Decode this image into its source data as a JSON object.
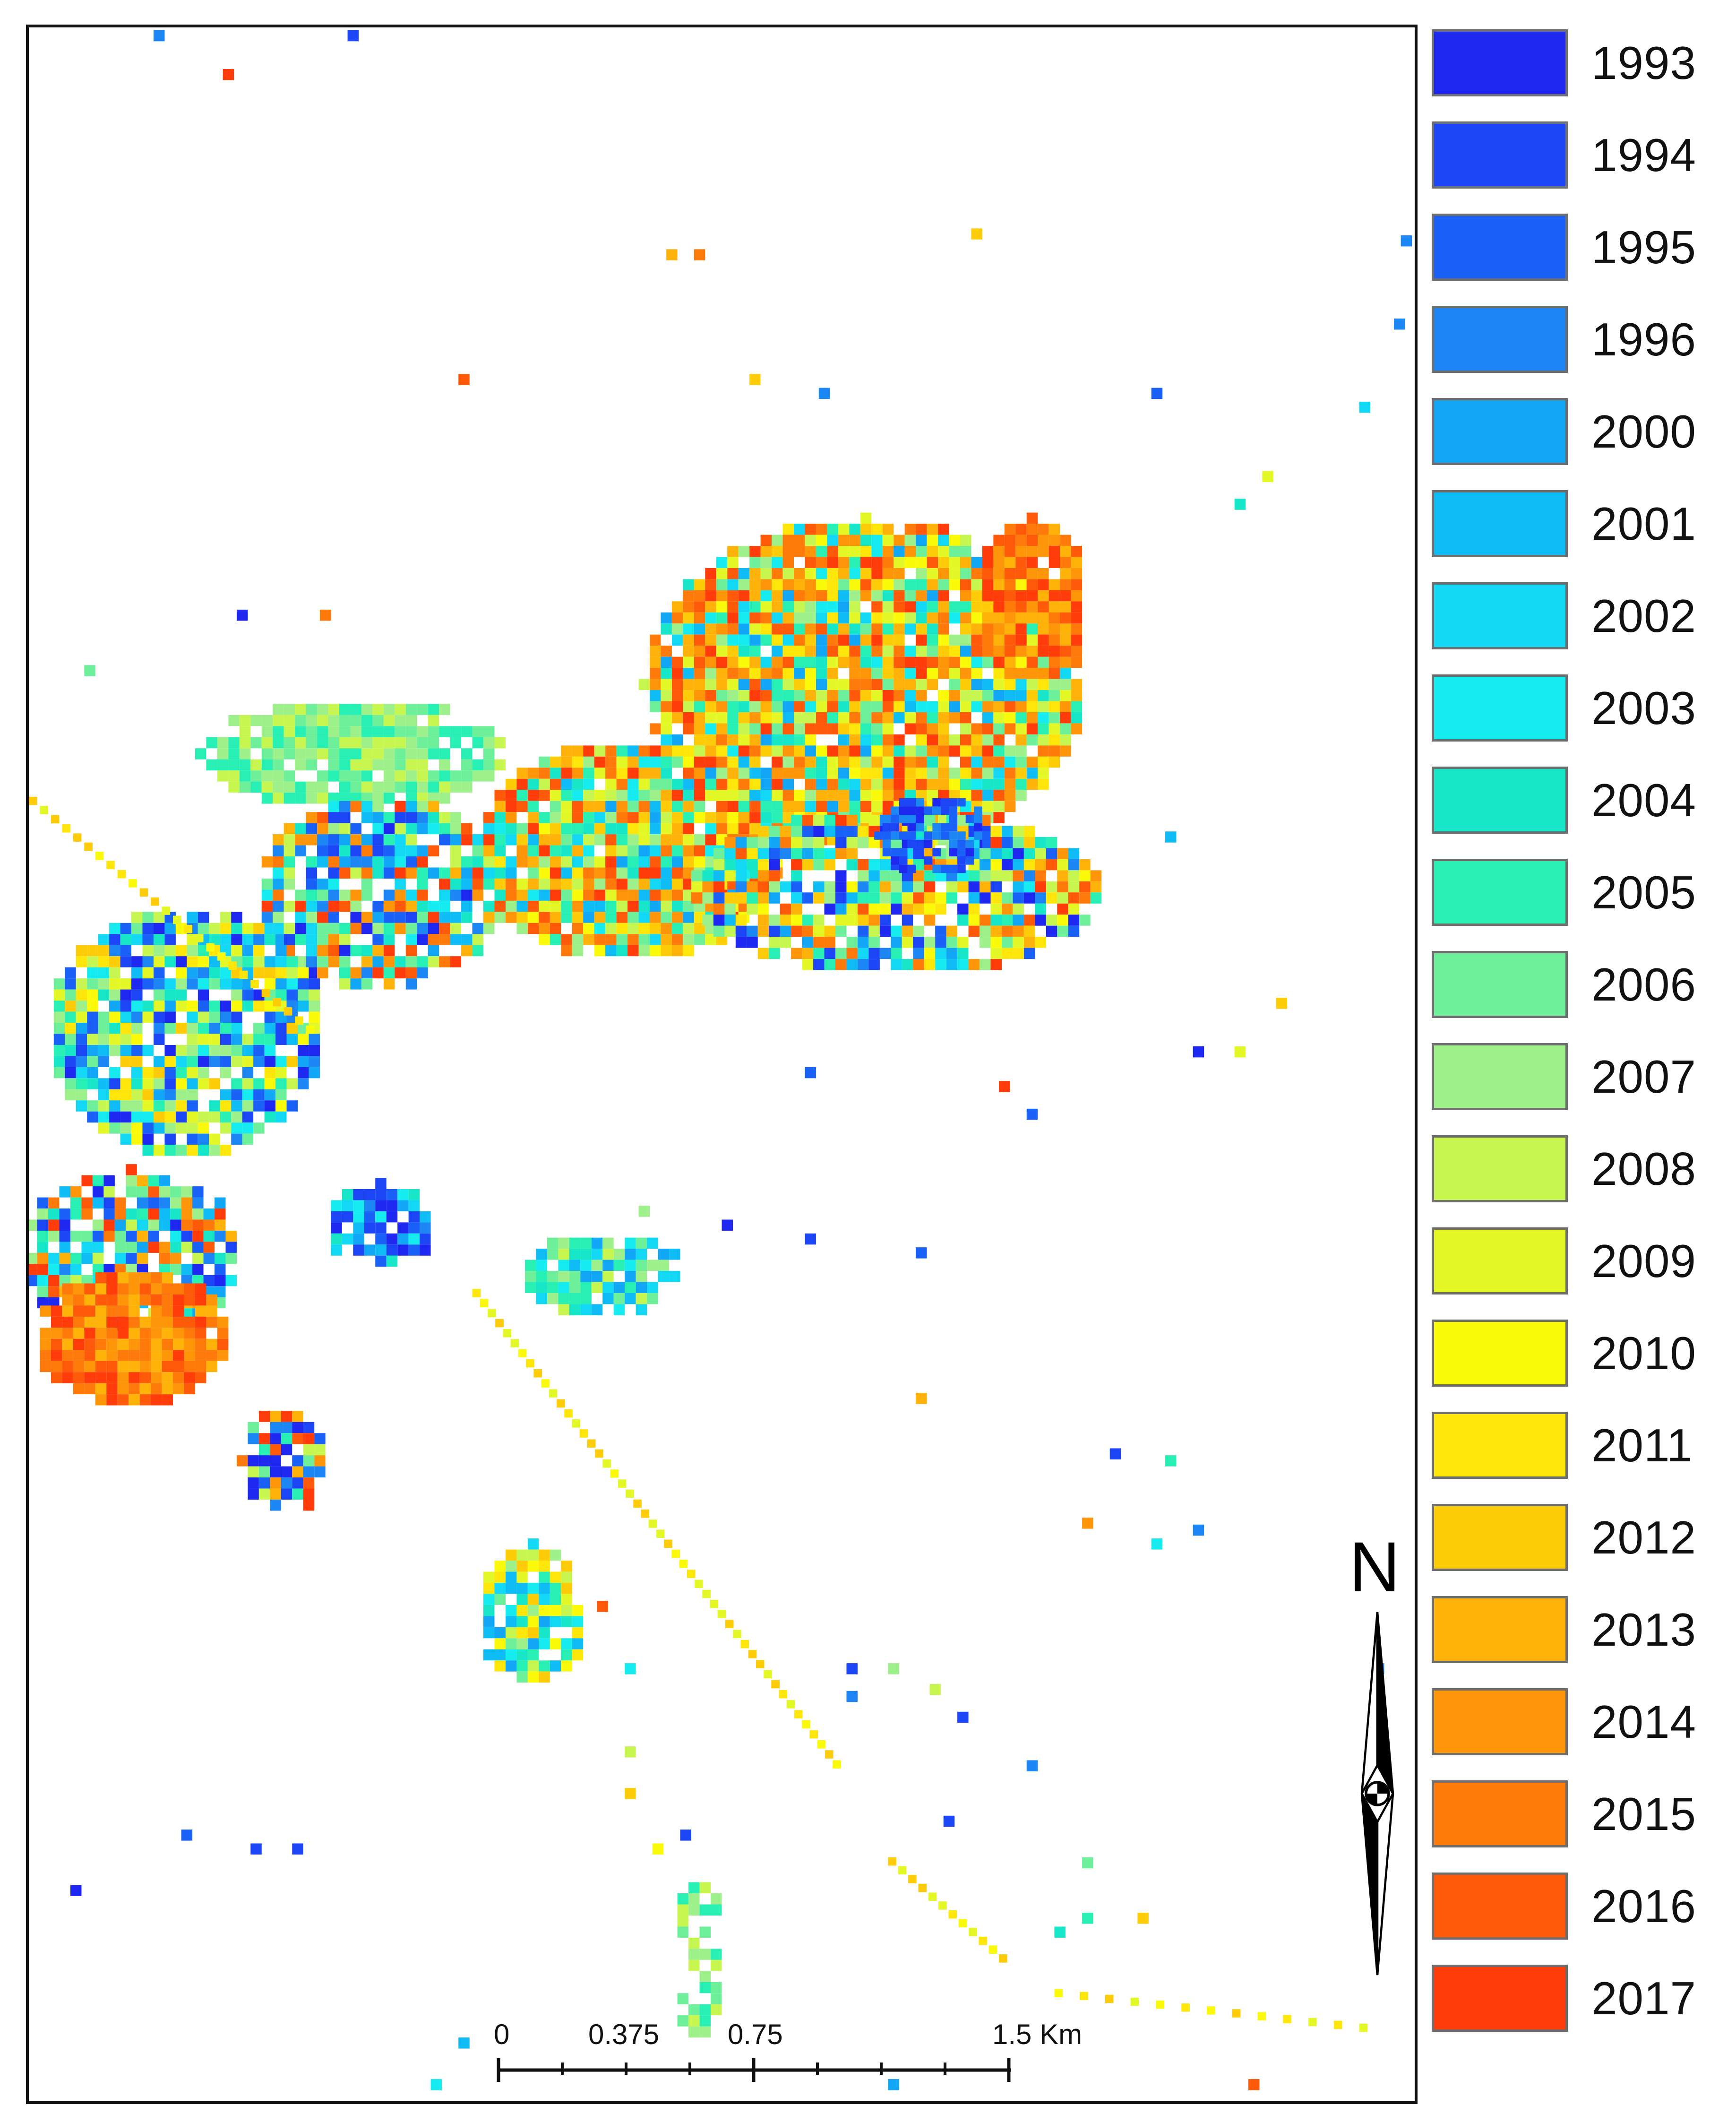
{
  "legend": {
    "items": [
      {
        "label": "1993",
        "color": "#1f28f0"
      },
      {
        "label": "1994",
        "color": "#1c46f5"
      },
      {
        "label": "1995",
        "color": "#1a62f7"
      },
      {
        "label": "1996",
        "color": "#1c86f5"
      },
      {
        "label": "2000",
        "color": "#12a6f7"
      },
      {
        "label": "2001",
        "color": "#0fbcf5"
      },
      {
        "label": "2002",
        "color": "#12d8f5"
      },
      {
        "label": "2003",
        "color": "#16ecf0"
      },
      {
        "label": "2004",
        "color": "#18e6c8"
      },
      {
        "label": "2005",
        "color": "#28f0b4"
      },
      {
        "label": "2006",
        "color": "#6ef09a"
      },
      {
        "label": "2007",
        "color": "#9ef08a"
      },
      {
        "label": "2008",
        "color": "#c8f650"
      },
      {
        "label": "2009",
        "color": "#e4f828"
      },
      {
        "label": "2010",
        "color": "#fafa0a"
      },
      {
        "label": "2011",
        "color": "#ffe60a"
      },
      {
        "label": "2012",
        "color": "#ffcc0a"
      },
      {
        "label": "2013",
        "color": "#ffb20a"
      },
      {
        "label": "2014",
        "color": "#ff960a"
      },
      {
        "label": "2015",
        "color": "#ff7a0a"
      },
      {
        "label": "2016",
        "color": "#ff5a0a"
      },
      {
        "label": "2017",
        "color": "#ff3c0a"
      }
    ]
  },
  "north": {
    "label": "N"
  },
  "scale": {
    "labels": [
      "0",
      "0.375",
      "0.75",
      "1.5 Km"
    ]
  }
}
